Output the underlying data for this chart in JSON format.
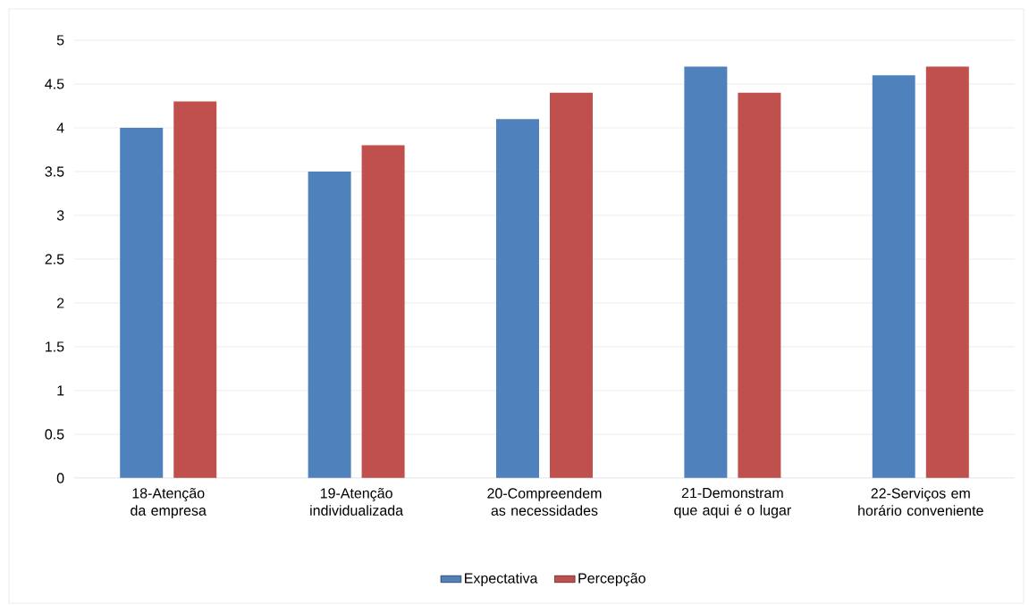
{
  "chart_data": {
    "type": "bar",
    "categories": [
      "18-Atenção da empresa",
      "19-Atenção individualizada",
      "20-Compreendem as necessidades",
      "21-Demonstram que aqui é o lugar",
      "22-Serviços em horário conveniente"
    ],
    "series": [
      {
        "name": "Expectativa",
        "color": "#4f81bd",
        "values": [
          4.0,
          3.5,
          4.1,
          4.7,
          4.6
        ]
      },
      {
        "name": "Percepção",
        "color": "#c0504d",
        "values": [
          4.3,
          3.8,
          4.4,
          4.4,
          4.7
        ]
      }
    ],
    "ylim": [
      0,
      5
    ],
    "yticks": [
      0,
      0.5,
      1,
      1.5,
      2,
      2.5,
      3,
      3.5,
      4,
      4.5,
      5
    ],
    "grid": "y",
    "legend": "bottom"
  }
}
